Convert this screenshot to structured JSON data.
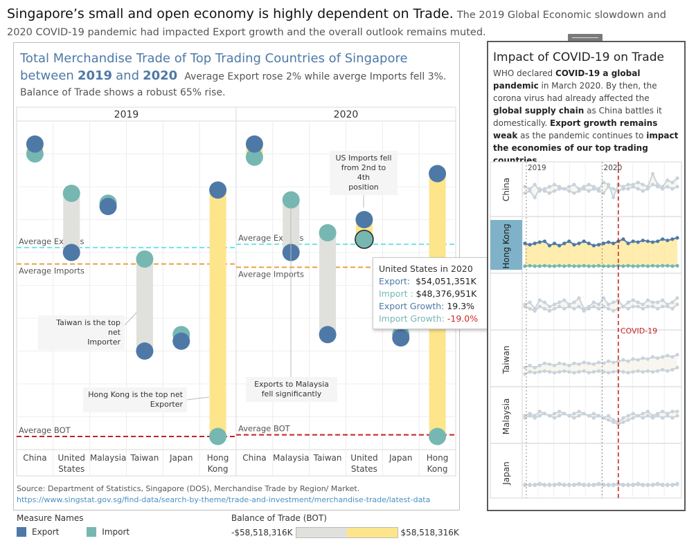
{
  "headline": {
    "main": "Singapore’s small and open economy is highly dependent on Trade.",
    "sub": "The 2019 Global Economic slowdown and 2020 COVID-19 pandemic had impacted Export growth and the overall outlook remains muted."
  },
  "main_title": {
    "line1": "Total Merchandise Trade of Top Trading Countries of Singapore",
    "between": "between",
    "year_a": "2019",
    "and": "and",
    "year_b": "2020",
    "note1": "Average Export rose 2% while averge Imports fell 3%.",
    "note2": "Balance of Trade shows a robust 65% rise."
  },
  "chart_data": {
    "type": "scatter",
    "panels": [
      {
        "header": "2019",
        "categories": [
          {
            "label_lines": [
              "China"
            ],
            "export": 0.93,
            "import": 0.9,
            "bot": "import-heavy"
          },
          {
            "label_lines": [
              "United",
              "States"
            ],
            "export": 0.6,
            "import": 0.78,
            "bot": "deficit"
          },
          {
            "label_lines": [
              "Malaysia"
            ],
            "export": 0.74,
            "import": 0.75,
            "bot": "deficit"
          },
          {
            "label_lines": [
              "Taiwan"
            ],
            "export": 0.3,
            "import": 0.58,
            "bot": "deficit"
          },
          {
            "label_lines": [
              "Japan"
            ],
            "export": 0.33,
            "import": 0.35,
            "bot": "deficit"
          },
          {
            "label_lines": [
              "Hong",
              "Kong"
            ],
            "export": 0.79,
            "import": 0.04,
            "bot": "surplus"
          }
        ],
        "ref_lines": {
          "avg_exports": 0.615,
          "avg_imports": 0.565,
          "avg_bot": 0.04
        }
      },
      {
        "header": "2020",
        "categories": [
          {
            "label_lines": [
              "China"
            ],
            "export": 0.93,
            "import": 0.89,
            "bot": "surplus"
          },
          {
            "label_lines": [
              "Malaysia"
            ],
            "export": 0.6,
            "import": 0.76,
            "bot": "deficit"
          },
          {
            "label_lines": [
              "Taiwan"
            ],
            "export": 0.35,
            "import": 0.66,
            "bot": "deficit"
          },
          {
            "label_lines": [
              "United",
              "States"
            ],
            "export": 0.7,
            "import": 0.64,
            "bot": "surplus"
          },
          {
            "label_lines": [
              "Japan"
            ],
            "export": 0.34,
            "import": 0.35,
            "bot": "deficit"
          },
          {
            "label_lines": [
              "Hong",
              "Kong"
            ],
            "export": 0.84,
            "import": 0.04,
            "bot": "surplus"
          }
        ],
        "ref_lines": {
          "avg_exports": 0.625,
          "avg_imports": 0.555,
          "avg_bot": 0.045
        }
      }
    ],
    "ref_labels": {
      "avg_exports": "Average Exports",
      "avg_imports": "Average Imports",
      "avg_bot": "Average BOT"
    },
    "legend": {
      "title": "Measure Names",
      "export": "Export",
      "import": "Import"
    },
    "bot_legend": {
      "title": "Balance of Trade (BOT)",
      "min": "-$58,518,316K",
      "max": "$58,518,316K"
    },
    "colors": {
      "export": "#4e79a7",
      "import": "#76b7b2",
      "surplus": "#fde58c",
      "deficit": "#e0e0dc",
      "avg_exports": "#6fe3e8",
      "avg_imports": "#e8a23c",
      "avg_bot": "#c81e1e"
    }
  },
  "annotations": {
    "taiwan": [
      "Taiwan is the top net",
      "Importer"
    ],
    "hongkong": [
      "Hong Kong is the top net",
      "Exporter"
    ],
    "malaysia": [
      "Exports to Malaysia",
      "fell significantly"
    ],
    "us": [
      "US Imports fell",
      "from 2nd to 4th",
      "position"
    ]
  },
  "tooltip": {
    "title": "United States in 2020",
    "export_label": "Export:",
    "export_value": "$54,051,351K",
    "import_label": "Import :",
    "import_value": "$48,376,951K",
    "export_growth_label": "Export Growth:",
    "export_growth_value": "19.3%",
    "import_growth_label": "Import Growth:",
    "import_growth_value": "-19.0%"
  },
  "source": {
    "prefix": "Source:",
    "text": "Department of Statistics, Singapore (DOS), Merchandise Trade by Region/ Market.",
    "url": "https://www.singstat.gov.sg/find-data/search-by-theme/trade-and-investment/merchandise-trade/latest-data"
  },
  "right_panel": {
    "title": "Impact of COVID-19 on Trade",
    "p1": "WHO declared",
    "p1b": "COVID-19 a global pandemic",
    "p2": "in March 2020. By then, the corona virus had already affected the",
    "p2b": "global supply chain",
    "p3": "as China battles it domestically.",
    "p4b": "Export growth remains weak",
    "p5": "as the pandemic continues to",
    "p5b": "impact the economies of our top trading countries",
    "p6": ".",
    "year_labels": [
      "2019",
      "2020"
    ],
    "covid_label": "COVID-19",
    "countries": [
      "China",
      "Hong Kong",
      "",
      "Taiwan",
      "Malaysia",
      "Japan"
    ],
    "sparklines": [
      {
        "export": [
          0.55,
          0.5,
          0.6,
          0.45,
          0.5,
          0.55,
          0.6,
          0.55,
          0.5,
          0.55,
          0.6,
          0.5,
          0.55,
          0.6,
          0.55,
          0.5,
          0.65,
          0.6,
          0.3,
          0.6,
          0.55,
          0.6,
          0.6,
          0.65,
          0.6,
          0.55,
          0.85,
          0.6,
          0.55,
          0.7,
          0.65,
          0.75
        ],
        "import": [
          0.4,
          0.45,
          0.3,
          0.5,
          0.45,
          0.4,
          0.45,
          0.5,
          0.5,
          0.45,
          0.4,
          0.45,
          0.5,
          0.45,
          0.5,
          0.45,
          0.4,
          0.55,
          0.5,
          0.45,
          0.5,
          0.5,
          0.55,
          0.5,
          0.45,
          0.5,
          0.6,
          0.55,
          0.5,
          0.55,
          0.5,
          0.55
        ],
        "highlight": false
      },
      {
        "export": [
          0.55,
          0.52,
          0.55,
          0.58,
          0.6,
          0.5,
          0.55,
          0.5,
          0.55,
          0.6,
          0.52,
          0.55,
          0.6,
          0.55,
          0.5,
          0.52,
          0.55,
          0.58,
          0.55,
          0.6,
          0.65,
          0.55,
          0.6,
          0.58,
          0.62,
          0.6,
          0.58,
          0.6,
          0.65,
          0.62,
          0.65,
          0.68
        ],
        "import": [
          0.02,
          0.03,
          0.02,
          0.02,
          0.03,
          0.02,
          0.02,
          0.03,
          0.02,
          0.03,
          0.02,
          0.02,
          0.03,
          0.02,
          0.02,
          0.03,
          0.02,
          0.02,
          0.02,
          0.03,
          0.02,
          0.03,
          0.02,
          0.02,
          0.03,
          0.02,
          0.03,
          0.02,
          0.03,
          0.03,
          0.02,
          0.03
        ],
        "highlight": true
      },
      {
        "export": [
          0.45,
          0.5,
          0.35,
          0.55,
          0.5,
          0.4,
          0.45,
          0.5,
          0.55,
          0.45,
          0.5,
          0.6,
          0.35,
          0.4,
          0.5,
          0.45,
          0.6,
          0.45,
          0.5,
          0.55,
          0.4,
          0.5,
          0.55,
          0.5,
          0.45,
          0.55,
          0.5,
          0.5,
          0.55,
          0.45,
          0.5,
          0.6
        ],
        "import": [
          0.4,
          0.35,
          0.3,
          0.4,
          0.35,
          0.3,
          0.35,
          0.4,
          0.35,
          0.4,
          0.35,
          0.4,
          0.3,
          0.35,
          0.4,
          0.35,
          0.4,
          0.35,
          0.3,
          0.35,
          0.4,
          0.35,
          0.4,
          0.4,
          0.35,
          0.4,
          0.4,
          0.35,
          0.4,
          0.4,
          0.35,
          0.45
        ],
        "highlight": false
      },
      {
        "export": [
          0.3,
          0.35,
          0.3,
          0.35,
          0.4,
          0.38,
          0.35,
          0.4,
          0.38,
          0.35,
          0.4,
          0.38,
          0.42,
          0.4,
          0.38,
          0.42,
          0.4,
          0.45,
          0.42,
          0.45,
          0.48,
          0.45,
          0.5,
          0.48,
          0.52,
          0.5,
          0.55,
          0.52,
          0.55,
          0.58,
          0.55,
          0.6
        ],
        "import": [
          0.15,
          0.2,
          0.18,
          0.2,
          0.22,
          0.2,
          0.18,
          0.2,
          0.22,
          0.2,
          0.18,
          0.2,
          0.22,
          0.18,
          0.2,
          0.22,
          0.2,
          0.18,
          0.2,
          0.22,
          0.2,
          0.18,
          0.2,
          0.22,
          0.2,
          0.22,
          0.2,
          0.22,
          0.25,
          0.22,
          0.25,
          0.3
        ],
        "highlight": false
      },
      {
        "export": [
          0.5,
          0.55,
          0.5,
          0.6,
          0.55,
          0.5,
          0.55,
          0.6,
          0.55,
          0.5,
          0.55,
          0.6,
          0.55,
          0.5,
          0.55,
          0.5,
          0.45,
          0.5,
          0.4,
          0.35,
          0.45,
          0.5,
          0.55,
          0.5,
          0.55,
          0.6,
          0.5,
          0.55,
          0.6,
          0.55,
          0.6,
          0.6
        ],
        "import": [
          0.45,
          0.5,
          0.45,
          0.5,
          0.55,
          0.5,
          0.45,
          0.5,
          0.55,
          0.5,
          0.45,
          0.5,
          0.55,
          0.5,
          0.45,
          0.5,
          0.45,
          0.4,
          0.35,
          0.3,
          0.35,
          0.4,
          0.45,
          0.5,
          0.45,
          0.5,
          0.45,
          0.5,
          0.45,
          0.5,
          0.45,
          0.5
        ],
        "highlight": false
      },
      {
        "export": [
          0.22,
          0.2,
          0.22,
          0.24,
          0.22,
          0.2,
          0.22,
          0.24,
          0.22,
          0.2,
          0.22,
          0.24,
          0.22,
          0.2,
          0.22,
          0.24,
          0.22,
          0.2,
          0.22,
          0.24,
          0.22,
          0.2,
          0.22,
          0.24,
          0.22,
          0.2,
          0.22,
          0.24,
          0.22,
          0.2,
          0.22,
          0.24
        ],
        "import": [
          0.2,
          0.22,
          0.2,
          0.22,
          0.2,
          0.22,
          0.2,
          0.22,
          0.2,
          0.22,
          0.2,
          0.22,
          0.2,
          0.22,
          0.2,
          0.22,
          0.2,
          0.22,
          0.2,
          0.22,
          0.2,
          0.22,
          0.2,
          0.22,
          0.2,
          0.22,
          0.2,
          0.22,
          0.2,
          0.22,
          0.2,
          0.22
        ],
        "highlight": false
      }
    ]
  }
}
